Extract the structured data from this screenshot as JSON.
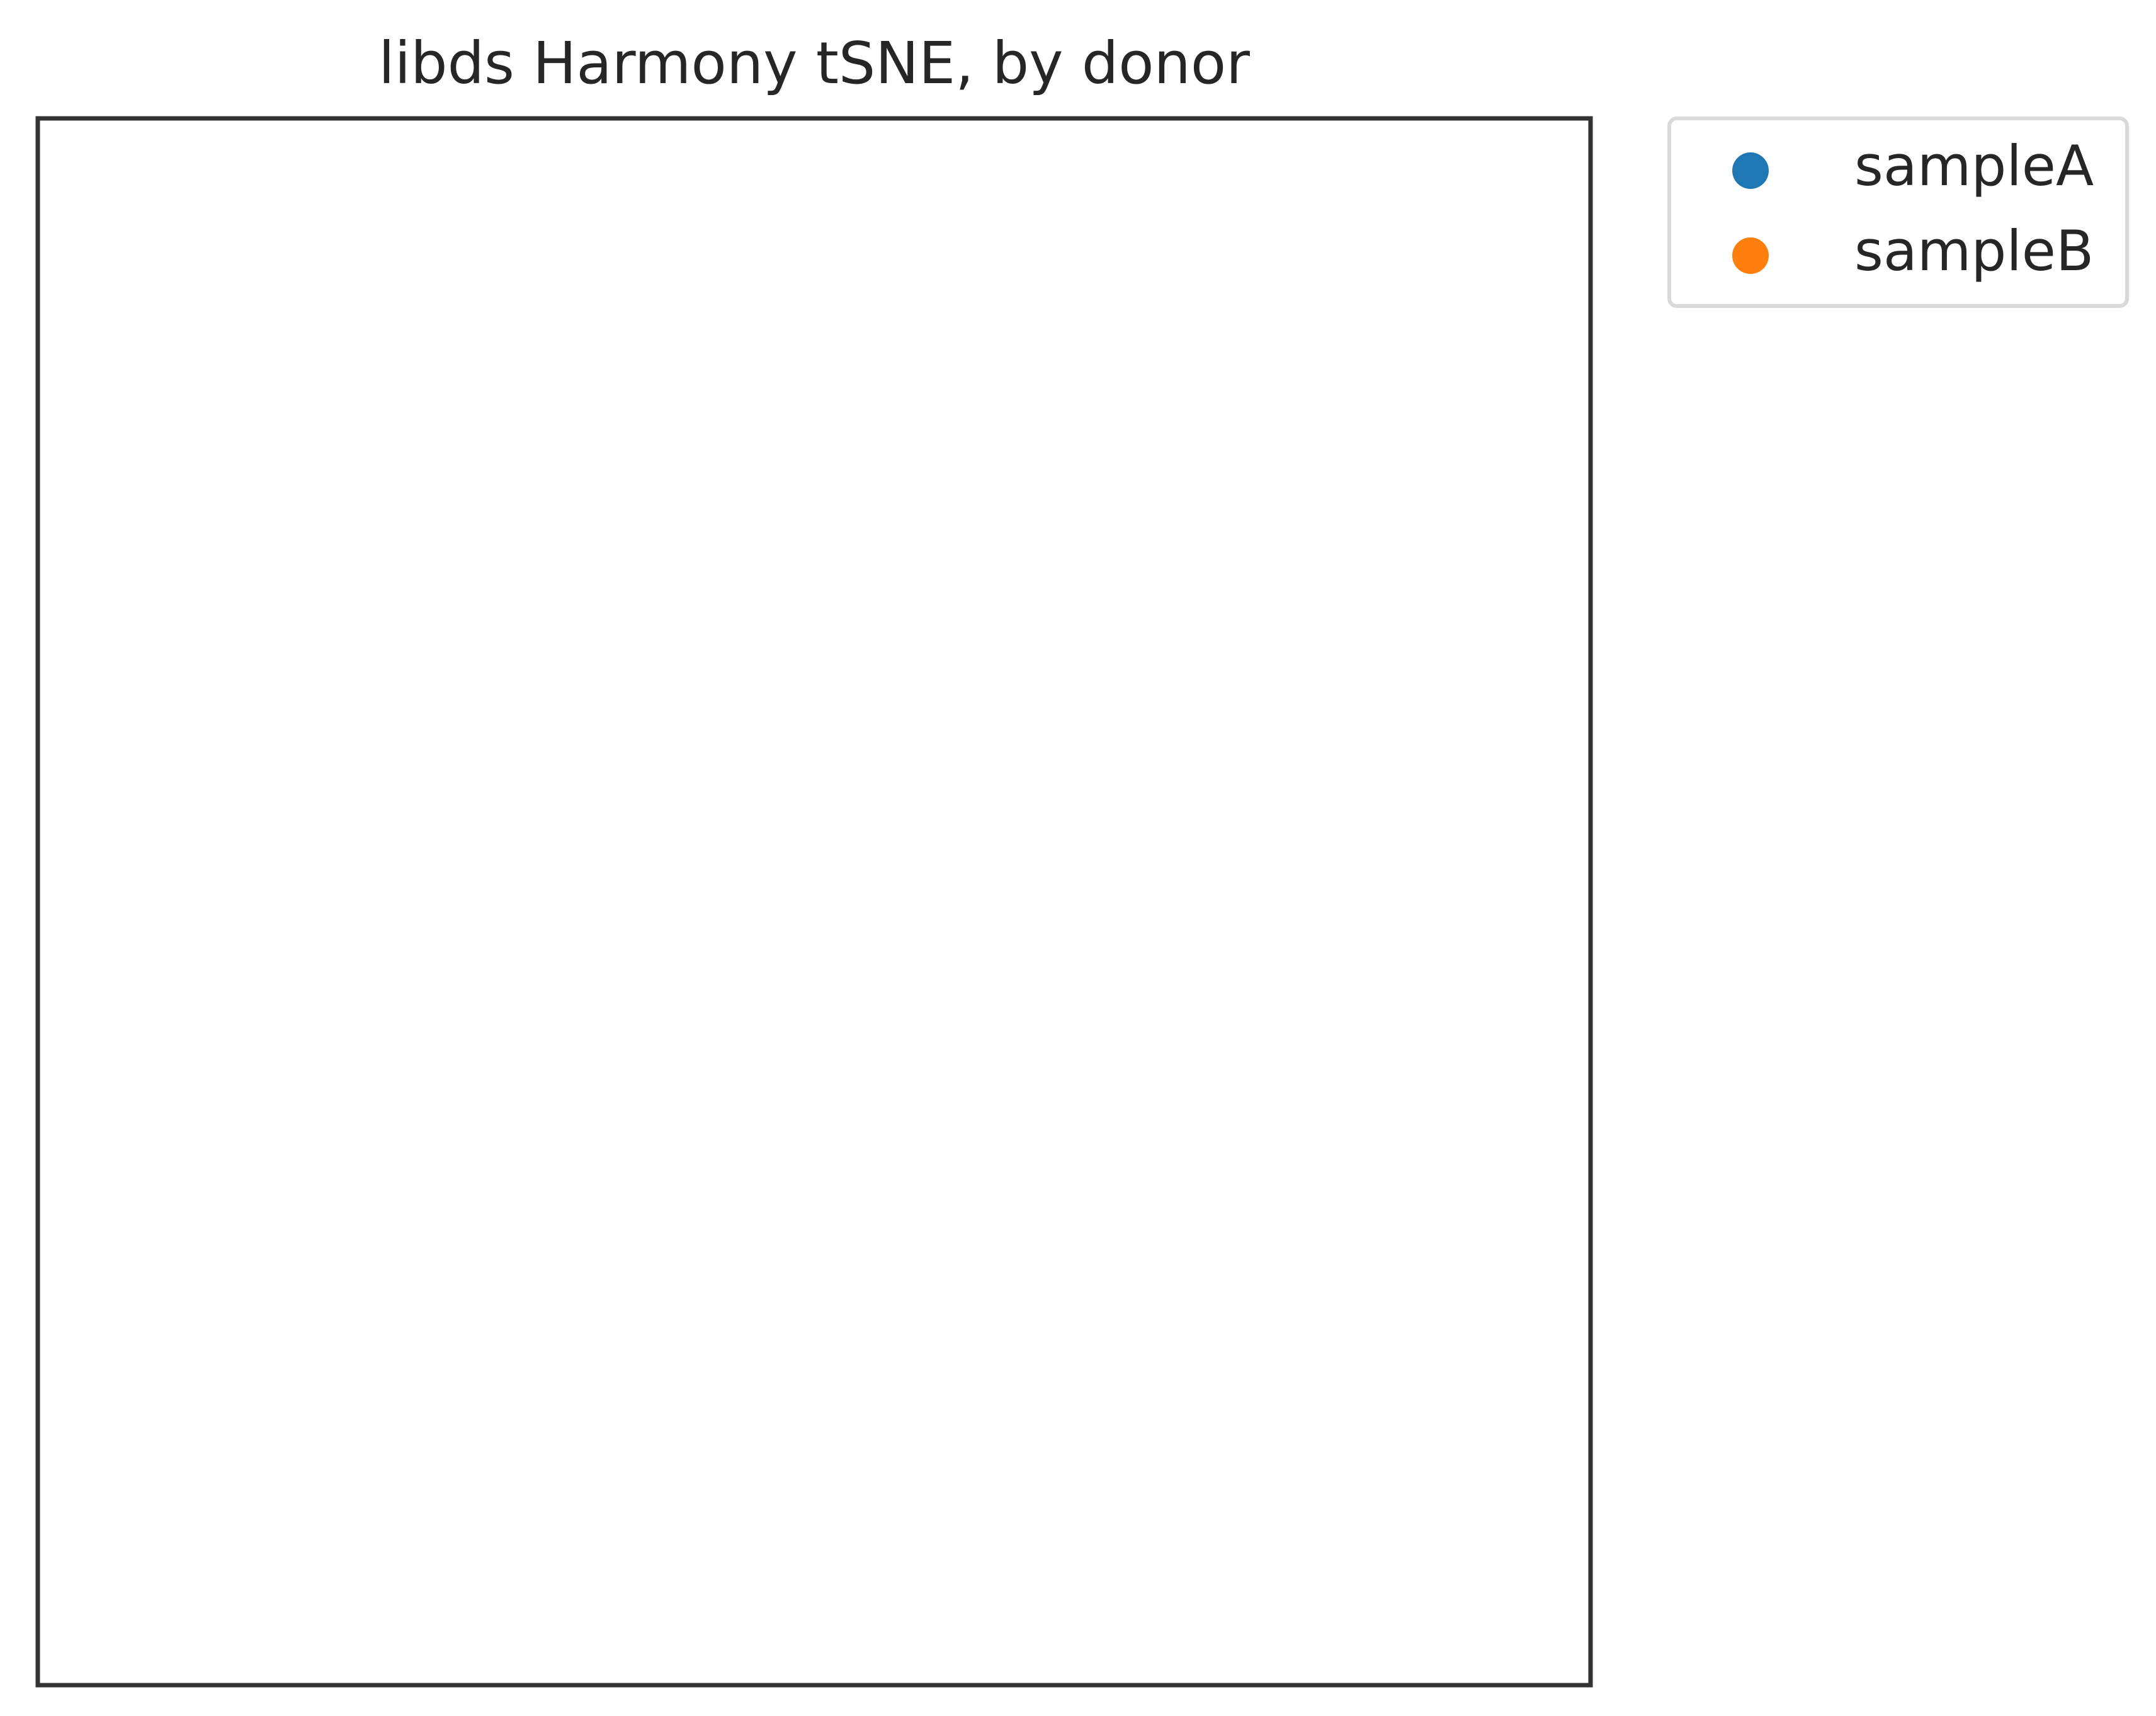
{
  "chart_data": {
    "type": "scatter",
    "title": "libds Harmony tSNE, by donor",
    "xlabel": "",
    "ylabel": "",
    "grid": false,
    "axis_ticks": false,
    "legend_position": "outside-top-right",
    "series": [
      {
        "name": "sampleA",
        "color": "#1f77b4",
        "points": []
      },
      {
        "name": "sampleB",
        "color": "#ff7f0e",
        "points": []
      }
    ]
  }
}
